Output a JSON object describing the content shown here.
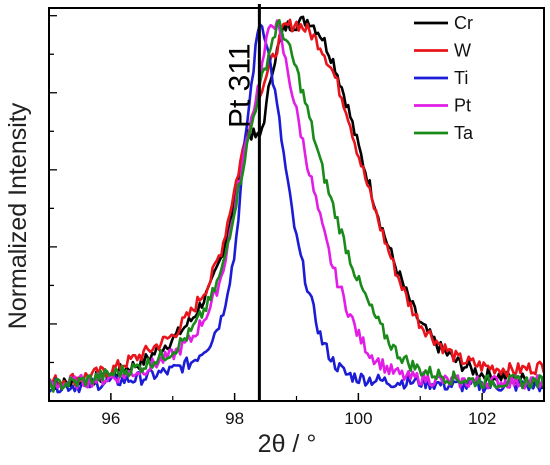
{
  "chart_data": {
    "type": "line",
    "xlabel": "2θ / °",
    "ylabel": "Normalized Intensity",
    "xlim": [
      95,
      103
    ],
    "ylim": [
      0,
      1.02
    ],
    "x_ticks": [
      96,
      98,
      100,
      102
    ],
    "x_tick_labels": [
      "96",
      "98",
      "100",
      "102"
    ],
    "grid": false,
    "legend_position": "top-right",
    "reference_line": {
      "x": 98.4,
      "label": "Pt 311"
    },
    "colors": {
      "Cr": "#000000",
      "W": "#e8141b",
      "Ti": "#1c1cd6",
      "Pt": "#e11de6",
      "Ta": "#1a8a1a"
    },
    "series": [
      {
        "name": "Cr",
        "x": [
          95.0,
          95.5,
          96.0,
          96.5,
          97.0,
          97.3,
          97.6,
          97.8,
          98.0,
          98.2,
          98.4,
          98.5,
          98.6,
          98.8,
          99.0,
          99.2,
          99.4,
          99.6,
          99.8,
          100.0,
          100.2,
          100.4,
          100.6,
          100.8,
          101.0,
          101.3,
          101.6,
          102.0,
          102.5,
          103.0
        ],
        "y": [
          0.04,
          0.05,
          0.07,
          0.1,
          0.16,
          0.21,
          0.29,
          0.38,
          0.52,
          0.7,
          0.68,
          0.75,
          0.86,
          0.97,
          0.98,
          0.99,
          0.95,
          0.88,
          0.78,
          0.66,
          0.55,
          0.44,
          0.35,
          0.27,
          0.2,
          0.14,
          0.1,
          0.07,
          0.06,
          0.05
        ]
      },
      {
        "name": "W",
        "x": [
          95.0,
          95.5,
          96.0,
          96.5,
          97.0,
          97.3,
          97.6,
          97.8,
          98.0,
          98.2,
          98.4,
          98.6,
          98.8,
          99.0,
          99.2,
          99.4,
          99.6,
          99.8,
          100.0,
          100.2,
          100.4,
          100.6,
          100.8,
          101.0,
          101.3,
          101.6,
          102.0,
          102.5,
          103.0
        ],
        "y": [
          0.05,
          0.06,
          0.08,
          0.12,
          0.17,
          0.23,
          0.31,
          0.4,
          0.55,
          0.7,
          0.8,
          0.88,
          0.97,
          0.98,
          0.96,
          0.92,
          0.85,
          0.76,
          0.64,
          0.53,
          0.43,
          0.34,
          0.26,
          0.2,
          0.15,
          0.11,
          0.09,
          0.08,
          0.09
        ]
      },
      {
        "name": "Ti",
        "x": [
          95.0,
          95.5,
          96.0,
          96.5,
          97.0,
          97.3,
          97.6,
          97.8,
          98.0,
          98.1,
          98.2,
          98.3,
          98.4,
          98.5,
          98.6,
          98.7,
          98.8,
          98.9,
          99.0,
          99.2,
          99.4,
          99.6,
          99.8,
          100.0,
          100.5,
          101.0,
          101.5,
          102.0,
          102.5,
          103.0
        ],
        "y": [
          0.04,
          0.04,
          0.05,
          0.06,
          0.08,
          0.1,
          0.15,
          0.22,
          0.38,
          0.55,
          0.72,
          0.86,
          0.99,
          0.95,
          0.85,
          0.75,
          0.63,
          0.52,
          0.42,
          0.28,
          0.16,
          0.1,
          0.07,
          0.06,
          0.05,
          0.05,
          0.04,
          0.04,
          0.04,
          0.04
        ]
      },
      {
        "name": "Pt",
        "x": [
          95.0,
          95.5,
          96.0,
          96.5,
          97.0,
          97.3,
          97.6,
          97.8,
          98.0,
          98.2,
          98.4,
          98.5,
          98.6,
          98.7,
          98.8,
          99.0,
          99.2,
          99.4,
          99.6,
          99.8,
          100.0,
          100.2,
          100.5,
          100.8,
          101.0,
          101.5,
          102.0,
          102.5,
          103.0
        ],
        "y": [
          0.04,
          0.05,
          0.06,
          0.08,
          0.12,
          0.16,
          0.24,
          0.33,
          0.5,
          0.68,
          0.83,
          0.92,
          0.99,
          0.97,
          0.9,
          0.75,
          0.6,
          0.46,
          0.34,
          0.25,
          0.17,
          0.12,
          0.08,
          0.06,
          0.06,
          0.05,
          0.05,
          0.05,
          0.05
        ]
      },
      {
        "name": "Ta",
        "x": [
          95.0,
          95.5,
          96.0,
          96.5,
          97.0,
          97.3,
          97.6,
          97.8,
          98.0,
          98.2,
          98.4,
          98.6,
          98.7,
          98.8,
          99.0,
          99.2,
          99.4,
          99.6,
          99.8,
          100.0,
          100.2,
          100.4,
          100.6,
          100.8,
          101.0,
          101.5,
          102.0,
          102.5,
          103.0
        ],
        "y": [
          0.04,
          0.05,
          0.07,
          0.09,
          0.13,
          0.18,
          0.26,
          0.34,
          0.5,
          0.66,
          0.81,
          0.93,
          0.98,
          0.95,
          0.86,
          0.74,
          0.61,
          0.5,
          0.4,
          0.31,
          0.24,
          0.18,
          0.13,
          0.1,
          0.08,
          0.06,
          0.05,
          0.05,
          0.05
        ]
      }
    ]
  }
}
